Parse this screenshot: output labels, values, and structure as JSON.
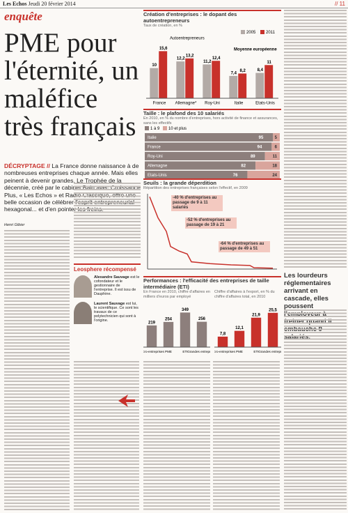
{
  "header": {
    "publication": "Les Echos",
    "date": "Jeudi 20 février 2014",
    "page": "// 11"
  },
  "rubric": "enquête",
  "headline": "PME pour l'éternité, un maléfice très français",
  "lede": {
    "kicker": "DÉCRYPTAGE //",
    "text": "La France donne naissance à de nombreuses entreprises chaque année. Mais elles peinent à devenir grandes. Le Trophée de la décennie, créé par le cabinet Bain avec Croissance Plus, « Les Echos » et Radio Classique, offre une belle occasion de célébrer l'esprit entrepreneurial hexagonal... et d'en pointer les freins."
  },
  "byline": "Henri Gibier",
  "box": {
    "title": "Leosphere récompensé",
    "people": [
      {
        "name": "Alexandre Sauvage",
        "text": "est le cofondateur et le gestionnaire de l'entreprise. Il est issu de Dauphine."
      },
      {
        "name": "Laurent Sauvage",
        "text": "est lui, le scientifique. Ce sont les travaux de ce polytechnicien qui sont à l'origine."
      }
    ]
  },
  "pullquote": "Les lourdeurs réglementaires arrivant en cascade, elles poussent l'employeur à freiner quand il embauche 9 salariés.",
  "charts": [
    {
      "type": "bar",
      "title": "Création d'entreprises : le dopant des autoentrepreneurs",
      "subtitle": "Taux de création, en %",
      "categories": [
        "France",
        "Allemagne*",
        "Roy-Uni",
        "Italie",
        "Etats-Unis"
      ],
      "series": [
        {
          "name": "2005",
          "color": "#b3aaa6",
          "values": [
            10,
            12.2,
            11.2,
            7.4,
            8.4
          ],
          "value_labels": [
            "10",
            "12,2",
            "11,2",
            "7,4",
            "8,4"
          ]
        },
        {
          "name": "2011",
          "color": "#c8312b",
          "values": [
            15.6,
            13.2,
            12.4,
            8.2,
            11
          ],
          "value_labels": [
            "15,6",
            "13,2",
            "12,4",
            "8,2",
            "11"
          ]
        }
      ],
      "annotations": [
        "Autoentrepreneurs",
        "Moyenne européenne"
      ],
      "ylim": [
        0,
        18
      ]
    },
    {
      "type": "hbar-stacked",
      "title": "Taille : le plafond des 10 salariés",
      "subtitle": "En 2010, en % du nombre d'entreprises, hors activité de finance et assurances, sans les effectifs",
      "categories": [
        "Italie",
        "France",
        "Roy-Uni",
        "Allemagne",
        "Etats-Unis"
      ],
      "series": [
        {
          "name": "1 à 9",
          "color": "#8d7f7c",
          "values": [
            95,
            94,
            89,
            82,
            76
          ]
        },
        {
          "name": "10 et plus",
          "color": "#d9a59c",
          "values": [
            5,
            6,
            11,
            18,
            24
          ]
        }
      ],
      "xlim": [
        0,
        100
      ]
    },
    {
      "type": "line",
      "title": "Seuils : la grande déperdition",
      "subtitle": "Répartition des entreprises françaises selon l'effectif, en 2009",
      "color": "#c8312b",
      "x": [
        1,
        5,
        9,
        11,
        15,
        19,
        21,
        30,
        40,
        49,
        51,
        60
      ],
      "values": [
        240,
        170,
        125,
        75,
        60,
        50,
        24,
        18,
        14,
        12,
        4.3,
        3
      ],
      "xlim": [
        0,
        62
      ],
      "ylim": [
        0,
        250
      ],
      "annotations": [
        "-40 % d'entreprises au passage de 9 à 11 salariés",
        "-52 % d'entreprises au passage de 19 à 21",
        "-64 % d'entreprises au passage de 49 à 51"
      ]
    },
    {
      "type": "bar-panels",
      "title": "Performances : l'efficacité des entreprises de taille intermédiaire (ETI)",
      "panels": [
        {
          "subtitle": "En France en 2010, chiffre d'affaires en milliers d'euros par employé",
          "color": "#8d7f7c",
          "categories": [
            "Micro-entreprises",
            "PME",
            "ETI",
            "Grandes entreprises"
          ],
          "values": [
            219,
            254,
            349,
            256
          ],
          "ylim": [
            0,
            380
          ]
        },
        {
          "subtitle": "Chiffre d'affaires à l'export, en % du chiffre d'affaires total, en 2010",
          "color": "#c8312b",
          "categories": [
            "Micro-entreprises",
            "PME",
            "ETI",
            "Grandes entreprises"
          ],
          "values": [
            7.8,
            12.1,
            21.9,
            25.5
          ],
          "value_labels": [
            "7,8",
            "12,1",
            "21,9",
            "25,5"
          ],
          "ylim": [
            0,
            28
          ]
        }
      ]
    }
  ]
}
